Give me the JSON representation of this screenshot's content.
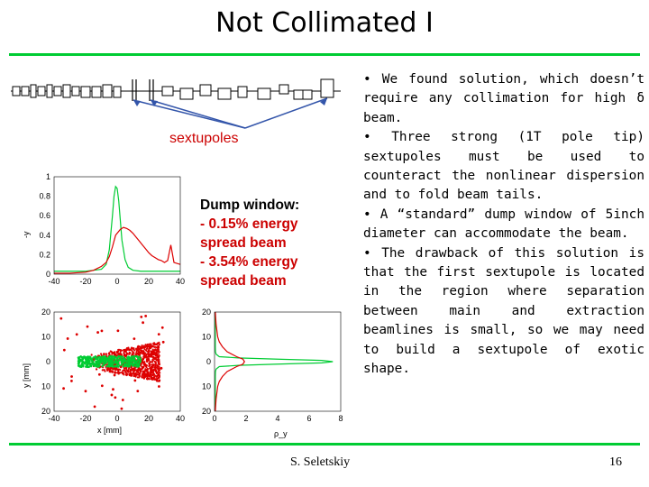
{
  "slide": {
    "title": "Not Collimated I",
    "sextupoles_label": "sextupoles",
    "dump": {
      "heading": "Dump window:",
      "lines": [
        "- 0.15% energy spread beam",
        "- 3.54% energy spread beam"
      ]
    },
    "bullets": [
      "•  We found solution, which doesn’t require any collimation for high δ beam.",
      "• Three strong (1T pole tip) sextupoles must be used to counteract the nonlinear dispersion and to fold beam tails.",
      "• A “standard” dump window of 5inch diameter can accommodate the beam.",
      "• The drawback of this solution is that the first sextupole is located in the region where separation between main and extraction beamlines is small, so we may need to build a sextupole of exotic shape."
    ],
    "author": "S. Seletskiy",
    "page_number": "16"
  },
  "colors": {
    "accent_line": "#00cc33",
    "red_series": "#dd0000",
    "green_series": "#00cc33",
    "label_red": "#cc0000"
  },
  "chart_data": [
    {
      "type": "line",
      "ylabel": "-y",
      "xticks": [
        "-40",
        "-20",
        "0",
        "20",
        "40"
      ],
      "yticks": [
        "1",
        "0.8",
        "0.6",
        "0.4",
        "0.2",
        "0"
      ],
      "xlim": [
        -40,
        40
      ],
      "ylim": [
        0,
        1
      ],
      "series": [
        {
          "color": "#00cc33",
          "x": [
            -40,
            -30,
            -20,
            -15,
            -10,
            -7,
            -5,
            -3,
            -2,
            -1,
            0,
            1,
            2,
            3,
            5,
            7,
            10,
            15,
            20,
            30,
            40
          ],
          "y": [
            0.03,
            0.03,
            0.03,
            0.04,
            0.05,
            0.1,
            0.25,
            0.6,
            0.8,
            0.9,
            0.88,
            0.75,
            0.55,
            0.35,
            0.15,
            0.07,
            0.04,
            0.03,
            0.03,
            0.03,
            0.03
          ]
        },
        {
          "color": "#dd0000",
          "x": [
            -40,
            -30,
            -20,
            -15,
            -10,
            -7,
            -5,
            -3,
            -1,
            0,
            2,
            4,
            6,
            8,
            10,
            12,
            14,
            16,
            18,
            20,
            22,
            24,
            26,
            28,
            29,
            30,
            32,
            34,
            36,
            40
          ],
          "y": [
            0.01,
            0.01,
            0.02,
            0.04,
            0.08,
            0.12,
            0.18,
            0.28,
            0.4,
            0.42,
            0.46,
            0.48,
            0.47,
            0.45,
            0.42,
            0.38,
            0.34,
            0.3,
            0.26,
            0.22,
            0.19,
            0.17,
            0.15,
            0.14,
            0.13,
            0.12,
            0.14,
            0.3,
            0.12,
            0.1
          ]
        }
      ]
    },
    {
      "type": "scatter",
      "xlabel": "x [mm]",
      "ylabel": "y [mm]",
      "xticks": [
        "-40",
        "-20",
        "0",
        "20",
        "40"
      ],
      "yticks": [
        "20",
        "10",
        "0",
        "10",
        "20"
      ],
      "xlim": [
        -40,
        40
      ],
      "ylim": [
        -20,
        20
      ],
      "series": [
        {
          "color": "#dd0000",
          "x_range": [
            -20,
            27
          ],
          "y_range": [
            -8,
            8
          ],
          "sparse_x_range": [
            -38,
            30
          ],
          "sparse_y_range": [
            -19,
            19
          ]
        },
        {
          "color": "#00cc33",
          "x_range": [
            -25,
            15
          ],
          "y_range": [
            -2.2,
            2.2
          ]
        }
      ]
    },
    {
      "type": "line",
      "xlabel": "ρ_y",
      "xticks": [
        "0",
        "2",
        "4",
        "6",
        "8"
      ],
      "yticks": [
        "20",
        "10",
        "0",
        "10",
        "20"
      ],
      "xlim": [
        0,
        8
      ],
      "ylim": [
        -20,
        20
      ],
      "series": [
        {
          "color": "#00cc33",
          "y": [
            -20,
            -10,
            -6,
            -4,
            -3,
            -2,
            -1.5,
            -1,
            -0.5,
            0,
            0.5,
            1,
            1.5,
            2,
            3,
            4,
            6,
            10,
            20
          ],
          "x": [
            0.05,
            0.05,
            0.05,
            0.06,
            0.1,
            0.3,
            1.5,
            4,
            6.8,
            7.5,
            6.8,
            4,
            1.5,
            0.3,
            0.1,
            0.06,
            0.05,
            0.05,
            0.05
          ]
        },
        {
          "color": "#dd0000",
          "y": [
            -20,
            -15,
            -10,
            -8,
            -6,
            -4,
            -2,
            -1,
            0,
            1,
            2,
            4,
            6,
            8,
            10,
            15,
            20
          ],
          "x": [
            0.05,
            0.1,
            0.2,
            0.3,
            0.5,
            0.8,
            1.4,
            1.8,
            1.9,
            1.8,
            1.4,
            0.8,
            0.5,
            0.3,
            0.2,
            0.1,
            0.05
          ]
        }
      ]
    }
  ]
}
